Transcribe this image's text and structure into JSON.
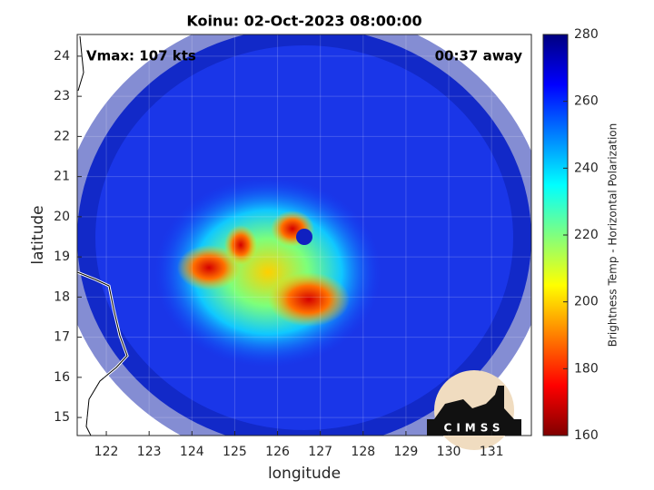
{
  "title": "Koinu: 02-Oct-2023 08:00:00",
  "vmax_label": "Vmax: 107 kts",
  "time_label": "00:37 away",
  "x_axis": {
    "label": "longitude",
    "lim": [
      121.32,
      131.93
    ],
    "ticks": [
      122,
      123,
      124,
      125,
      126,
      127,
      128,
      129,
      130,
      131
    ]
  },
  "y_axis": {
    "label": "latitude",
    "lim": [
      14.55,
      24.54
    ],
    "ticks": [
      15,
      16,
      17,
      18,
      19,
      20,
      21,
      22,
      23,
      24
    ]
  },
  "colorbar": {
    "label": "Brightness Temp - Horizontal Polarization",
    "lim": [
      160,
      280
    ],
    "ticks": [
      160,
      180,
      200,
      220,
      240,
      260,
      280
    ]
  },
  "logo": "CIMSS"
}
